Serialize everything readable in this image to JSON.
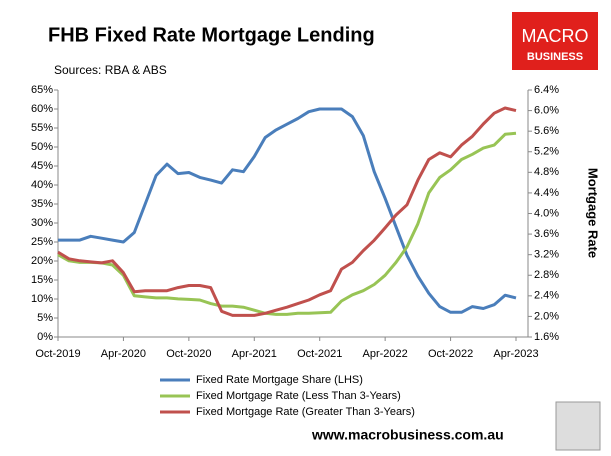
{
  "chart_data": {
    "type": "line",
    "title": "FHB Fixed Rate Mortgage Lending",
    "subtitle": "Sources: RBA & ABS",
    "logo": [
      "MACRO",
      "BUSINESS"
    ],
    "footer": "www.macrobusiness.com.au",
    "y2_label": "Mortgage Rate",
    "grid": false,
    "categories": [
      "Oct-2019",
      null,
      null,
      null,
      null,
      null,
      "Apr-2020",
      null,
      null,
      null,
      null,
      null,
      "Oct-2020",
      null,
      null,
      null,
      null,
      null,
      "Apr-2021",
      null,
      null,
      null,
      null,
      null,
      "Oct-2021",
      null,
      null,
      null,
      null,
      null,
      "Apr-2022",
      null,
      null,
      null,
      null,
      null,
      "Oct-2022",
      null,
      null,
      null,
      null,
      null,
      "Apr-2023"
    ],
    "series": [
      {
        "name": "Fixed Rate Mortgage Share (LHS)",
        "color": "#4a7ebb",
        "axis": "y",
        "values": [
          25.5,
          25.5,
          25.5,
          26.5,
          26,
          25.5,
          25,
          27.5,
          35,
          42.5,
          45.5,
          43,
          43.3,
          42,
          41.3,
          40.5,
          44,
          43.5,
          47.5,
          52.5,
          54.5,
          56,
          57.5,
          59.3,
          60,
          60,
          60,
          58,
          53,
          43.5,
          36.5,
          29,
          21.5,
          16,
          11.5,
          8,
          6.5,
          6.5,
          8,
          7.5,
          8.5,
          11,
          10.3
        ]
      },
      {
        "name": "Fixed Mortgage Rate (Less Than 3-Years)",
        "color": "#98c455",
        "axis": "y2",
        "values": [
          3.2,
          3.08,
          3.05,
          3.05,
          3.04,
          3.0,
          2.8,
          2.4,
          2.38,
          2.36,
          2.36,
          2.34,
          2.33,
          2.32,
          2.25,
          2.2,
          2.2,
          2.18,
          2.12,
          2.06,
          2.04,
          2.04,
          2.06,
          2.06,
          2.07,
          2.08,
          2.3,
          2.42,
          2.5,
          2.62,
          2.8,
          3.05,
          3.35,
          3.8,
          4.4,
          4.7,
          4.85,
          5.05,
          5.15,
          5.27,
          5.33,
          5.54,
          5.56
        ]
      },
      {
        "name": "Fixed Mortgage Rate (Greater Than 3-Years)",
        "color": "#c0504d",
        "axis": "y2",
        "values": [
          3.25,
          3.12,
          3.08,
          3.06,
          3.04,
          3.08,
          2.85,
          2.48,
          2.5,
          2.5,
          2.5,
          2.56,
          2.6,
          2.6,
          2.56,
          2.1,
          2.02,
          2.02,
          2.02,
          2.06,
          2.12,
          2.18,
          2.25,
          2.32,
          2.42,
          2.5,
          2.92,
          3.05,
          3.28,
          3.48,
          3.72,
          3.97,
          4.17,
          4.65,
          5.05,
          5.18,
          5.1,
          5.33,
          5.5,
          5.74,
          5.95,
          6.05,
          6.0
        ]
      }
    ],
    "ylim": [
      0,
      65
    ],
    "yticks": [
      {
        "value": 0,
        "label": "0%"
      },
      {
        "value": 5,
        "label": "5%"
      },
      {
        "value": 10,
        "label": "10%"
      },
      {
        "value": 15,
        "label": "15%"
      },
      {
        "value": 20,
        "label": "20%"
      },
      {
        "value": 25,
        "label": "25%"
      },
      {
        "value": 30,
        "label": "30%"
      },
      {
        "value": 35,
        "label": "35%"
      },
      {
        "value": 40,
        "label": "40%"
      },
      {
        "value": 45,
        "label": "45%"
      },
      {
        "value": 50,
        "label": "50%"
      },
      {
        "value": 55,
        "label": "55%"
      },
      {
        "value": 60,
        "label": "60%"
      },
      {
        "value": 65,
        "label": "65%"
      }
    ],
    "y2lim": [
      1.6,
      6.4
    ],
    "y2ticks": [
      {
        "value": 1.6,
        "label": "1.6%"
      },
      {
        "value": 2.0,
        "label": "2.0%"
      },
      {
        "value": 2.4,
        "label": "2.4%"
      },
      {
        "value": 2.8,
        "label": "2.8%"
      },
      {
        "value": 3.2,
        "label": "3.2%"
      },
      {
        "value": 3.6,
        "label": "3.6%"
      },
      {
        "value": 4.0,
        "label": "4.0%"
      },
      {
        "value": 4.4,
        "label": "4.4%"
      },
      {
        "value": 4.8,
        "label": "4.8%"
      },
      {
        "value": 5.2,
        "label": "5.2%"
      },
      {
        "value": 5.6,
        "label": "5.6%"
      },
      {
        "value": 6.0,
        "label": "6.0%"
      },
      {
        "value": 6.4,
        "label": "6.4%"
      }
    ]
  }
}
